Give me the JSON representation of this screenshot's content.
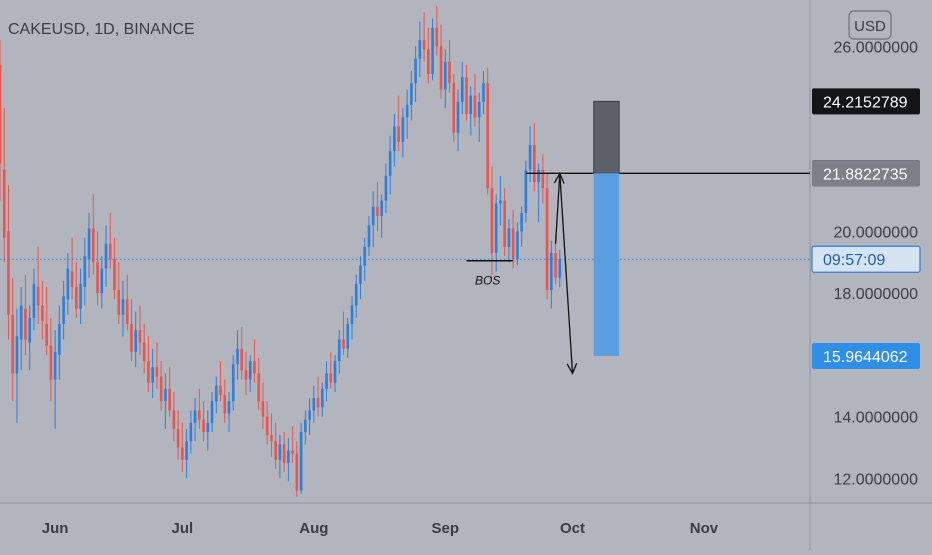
{
  "header": {
    "symbol_line": "CAKEUSD, 1D, BINANCE"
  },
  "currency_button": {
    "label": "USD"
  },
  "colors": {
    "background": "#b2b5be",
    "up_candle": "#2f7fd8",
    "down_candle": "#e8564d",
    "stop_zone": "#5d6068",
    "target_zone": "#5aa0e0",
    "price_line": "#2f7fd8",
    "axis_text": "#3a3d45"
  },
  "chart_data": {
    "type": "candlestick",
    "title": "CAKEUSD, 1D, BINANCE",
    "y_axis": {
      "ticks": [
        "26.0000000",
        "20.0000000",
        "18.0000000",
        "14.0000000",
        "12.0000000"
      ],
      "tick_values": [
        26,
        20,
        18,
        14,
        12
      ],
      "range": [
        11.2,
        27.5
      ]
    },
    "x_axis": {
      "labels": [
        "Jun",
        "Jul",
        "Aug",
        "Sep",
        "Oct",
        "Nov"
      ],
      "label_dates": [
        "2021-06-01",
        "2021-07-01",
        "2021-08-01",
        "2021-09-01",
        "2021-10-01",
        "2021-11-01"
      ],
      "range": [
        "2021-05-19",
        "2021-11-26"
      ]
    },
    "price_tags": [
      {
        "value": "24.2152789",
        "numeric": 24.2152789,
        "style": "dark"
      },
      {
        "value": "21.8841285",
        "numeric": 21.8841285,
        "style": "dark"
      },
      {
        "value": "21.8822735",
        "numeric": 21.8822735,
        "style": "gray"
      },
      {
        "value": "09:57:09",
        "numeric": 19.1,
        "style": "blue-outline"
      },
      {
        "value": "15.9644062",
        "numeric": 15.9644062,
        "style": "blue"
      }
    ],
    "current_price": 19.1,
    "series": {
      "start_date": "2021-05-19",
      "ohlc": [
        [
          25.4,
          26.2,
          21,
          22.2
        ],
        [
          22,
          24,
          19,
          19.8
        ],
        [
          20,
          21.5,
          16.5,
          17.3
        ],
        [
          17.3,
          18.5,
          14.5,
          15.4
        ],
        [
          15.4,
          17.5,
          13.8,
          16.6
        ],
        [
          16.5,
          18.2,
          15.5,
          17.6
        ],
        [
          17.5,
          18.6,
          16,
          16.5
        ],
        [
          16.4,
          17.6,
          15.5,
          17.2
        ],
        [
          17.2,
          18.8,
          16.8,
          18.3
        ],
        [
          18.2,
          19.5,
          17,
          17.6
        ],
        [
          17.6,
          18.4,
          16.5,
          17.1
        ],
        [
          17,
          18.2,
          16,
          16.3
        ],
        [
          16.3,
          17.2,
          14.5,
          15.2
        ],
        [
          15.2,
          16.8,
          13.6,
          16.1
        ],
        [
          16,
          17.6,
          15.2,
          17
        ],
        [
          17,
          18.4,
          16.5,
          17.9
        ],
        [
          17.8,
          19.3,
          17.3,
          18.8
        ],
        [
          18.7,
          19.8,
          17.8,
          18.2
        ],
        [
          18.2,
          19,
          17.2,
          17.5
        ],
        [
          17.5,
          18.8,
          17,
          18.3
        ],
        [
          18.2,
          19.8,
          17.6,
          19.2
        ],
        [
          19.1,
          20.6,
          18.5,
          20.1
        ],
        [
          20.1,
          21.2,
          18.6,
          19
        ],
        [
          19,
          20,
          17.6,
          18
        ],
        [
          18,
          19.2,
          17.5,
          18.8
        ],
        [
          18.8,
          20.2,
          18.2,
          19.6
        ],
        [
          19.6,
          20.6,
          18.8,
          19.1
        ],
        [
          19.1,
          19.8,
          17.8,
          18.1
        ],
        [
          18.1,
          19,
          17,
          17.3
        ],
        [
          17.3,
          18.4,
          16.6,
          17.8
        ],
        [
          17.8,
          18.6,
          16.8,
          17
        ],
        [
          17,
          17.8,
          15.8,
          16.1
        ],
        [
          16.1,
          17.4,
          15.6,
          16.8
        ],
        [
          16.8,
          17.6,
          16,
          16.4
        ],
        [
          16.4,
          17,
          15.4,
          15.8
        ],
        [
          15.8,
          16.6,
          14.8,
          15.1
        ],
        [
          15.1,
          16.2,
          14.6,
          15.6
        ],
        [
          15.6,
          16.4,
          14.9,
          15.3
        ],
        [
          15.3,
          15.8,
          14.2,
          14.5
        ],
        [
          14.5,
          15.4,
          13.6,
          14.9
        ],
        [
          14.9,
          15.6,
          14,
          14.2
        ],
        [
          14.2,
          14.8,
          13.2,
          13.6
        ],
        [
          13.6,
          14.2,
          12.6,
          13
        ],
        [
          13,
          13.8,
          12.2,
          12.6
        ],
        [
          12.6,
          13.6,
          12,
          13.2
        ],
        [
          13.2,
          14.2,
          12.8,
          13.8
        ],
        [
          13.8,
          14.6,
          13.2,
          14.2
        ],
        [
          14.2,
          14.9,
          13.6,
          13.9
        ],
        [
          13.9,
          14.5,
          13.2,
          13.5
        ],
        [
          13.5,
          14.2,
          12.9,
          13.8
        ],
        [
          13.8,
          14.8,
          13.5,
          14.5
        ],
        [
          14.5,
          15.3,
          14.1,
          15
        ],
        [
          15,
          15.8,
          14.5,
          14.7
        ],
        [
          14.7,
          15.2,
          13.8,
          14.1
        ],
        [
          14.1,
          14.8,
          13.5,
          14.5
        ],
        [
          14.5,
          16,
          14.2,
          15.7
        ],
        [
          15.7,
          16.8,
          15.2,
          16.2
        ],
        [
          16.2,
          16.9,
          15.2,
          15.5
        ],
        [
          15.5,
          16.1,
          14.7,
          15.2
        ],
        [
          15.2,
          16,
          14.8,
          15.8
        ],
        [
          15.8,
          16.5,
          15.1,
          15.4
        ],
        [
          15.4,
          15.9,
          14.2,
          14.5
        ],
        [
          14.5,
          15.1,
          13.6,
          14
        ],
        [
          14,
          14.5,
          13.1,
          13.4
        ],
        [
          13.4,
          14.1,
          12.7,
          13.2
        ],
        [
          13.2,
          13.8,
          12.3,
          12.6
        ],
        [
          12.6,
          13.4,
          12,
          13.1
        ],
        [
          13.1,
          13.5,
          12.2,
          12.5
        ],
        [
          12.5,
          13.3,
          11.9,
          12.9
        ],
        [
          12.9,
          13.7,
          12.5,
          12.8
        ],
        [
          12.8,
          13.2,
          11.4,
          11.6
        ],
        [
          11.6,
          13.8,
          11.5,
          13.5
        ],
        [
          13.5,
          14.2,
          13.1,
          13.9
        ],
        [
          13.9,
          14.6,
          13.4,
          14.2
        ],
        [
          14.2,
          15,
          13.8,
          14.6
        ],
        [
          14.6,
          15.3,
          14,
          14.3
        ],
        [
          14.3,
          15.1,
          14,
          14.9
        ],
        [
          14.9,
          15.8,
          14.5,
          15.4
        ],
        [
          15.4,
          16.1,
          14.9,
          15.1
        ],
        [
          15.1,
          16,
          14.8,
          15.8
        ],
        [
          15.8,
          16.8,
          15.4,
          16.5
        ],
        [
          16.5,
          17.4,
          16,
          16.2
        ],
        [
          16.2,
          17.2,
          15.9,
          17
        ],
        [
          17,
          17.9,
          16.5,
          17.6
        ],
        [
          17.6,
          18.6,
          17.2,
          18.3
        ],
        [
          18.3,
          19.2,
          17.8,
          18.9
        ],
        [
          18.9,
          19.8,
          18.4,
          19.5
        ],
        [
          19.5,
          20.5,
          19.2,
          20.2
        ],
        [
          20.2,
          21.3,
          19.5,
          20.8
        ],
        [
          20.8,
          21.6,
          20,
          20.5
        ],
        [
          20.5,
          21.2,
          19.8,
          21
        ],
        [
          21,
          22.2,
          20.6,
          21.8
        ],
        [
          21.8,
          23.1,
          21.2,
          22.6
        ],
        [
          22.6,
          23.8,
          22.1,
          23.4
        ],
        [
          23.4,
          24.4,
          22.6,
          22.9
        ],
        [
          22.9,
          24,
          22.4,
          23.7
        ],
        [
          23.7,
          24.6,
          23,
          24.1
        ],
        [
          24.1,
          25.2,
          23.6,
          24.8
        ],
        [
          24.8,
          26,
          24.2,
          25.6
        ],
        [
          25.6,
          26.8,
          25,
          26.2
        ],
        [
          26.2,
          27.1,
          25.5,
          25.9
        ],
        [
          25.9,
          26.6,
          24.8,
          25.1
        ],
        [
          25.1,
          26.9,
          24.9,
          26.6
        ],
        [
          26.6,
          27.3,
          25.7,
          26
        ],
        [
          26,
          26.7,
          24.3,
          24.6
        ],
        [
          24.6,
          25.9,
          24,
          25.5
        ],
        [
          25.5,
          26.2,
          24.5,
          24.8
        ],
        [
          24.8,
          25.1,
          22.9,
          23.2
        ],
        [
          23.2,
          24.6,
          22.6,
          24.2
        ],
        [
          24.2,
          25.5,
          23.8,
          25
        ],
        [
          25,
          25.4,
          23.6,
          23.8
        ],
        [
          23.8,
          24.7,
          23.1,
          24.4
        ],
        [
          24.4,
          25.1,
          23.4,
          23.7
        ],
        [
          23.7,
          24.5,
          22.9,
          24.2
        ],
        [
          24.2,
          25.2,
          23.8,
          24.8
        ],
        [
          24.8,
          25.3,
          21.2,
          21.4
        ],
        [
          21.4,
          22.1,
          18.5,
          19.3
        ],
        [
          19.3,
          21.2,
          18.7,
          20.9
        ],
        [
          20.9,
          21.8,
          20.2,
          21
        ],
        [
          21,
          21.4,
          19.2,
          19.5
        ],
        [
          19.5,
          20.4,
          19,
          20.1
        ],
        [
          20.1,
          20.7,
          18.8,
          19.1
        ],
        [
          19.1,
          20.3,
          18.9,
          20
        ],
        [
          20,
          20.8,
          19.5,
          20.6
        ],
        [
          20.6,
          22.3,
          20.3,
          22
        ],
        [
          22,
          23.4,
          21.6,
          22.8
        ],
        [
          22.8,
          23.5,
          21.3,
          21.6
        ],
        [
          21.6,
          22.2,
          20.3,
          22
        ],
        [
          22,
          22.5,
          20.9,
          21.4
        ],
        [
          21.4,
          21.9,
          17.8,
          18.1
        ],
        [
          18.1,
          19.7,
          17.5,
          19.3
        ],
        [
          19.3,
          19.9,
          18.3,
          18.5
        ],
        [
          18.5,
          19.4,
          18.2,
          19.1
        ]
      ]
    },
    "annotations": [
      {
        "text": "BOS",
        "date": "2021-09-11",
        "value": 18.45
      }
    ],
    "horizontal_lines": [
      {
        "value": 19.05,
        "from": "2021-09-06",
        "to": "2021-09-17"
      },
      {
        "value": 21.8822735,
        "from": "2021-09-20",
        "to": "2021-11-26"
      }
    ],
    "arrows": [
      {
        "from": {
          "date": "2021-09-27",
          "value": 19.6
        },
        "to": {
          "date": "2021-09-28",
          "value": 21.8822735
        }
      },
      {
        "from": {
          "date": "2021-09-28",
          "value": 21.8822735
        },
        "to": {
          "date": "2021-10-01",
          "value": 15.4
        }
      }
    ],
    "position": {
      "type": "short",
      "from": "2021-10-06",
      "to": "2021-10-12",
      "entry": 21.8841285,
      "stop": 24.2152789,
      "target": 15.9644062
    }
  }
}
